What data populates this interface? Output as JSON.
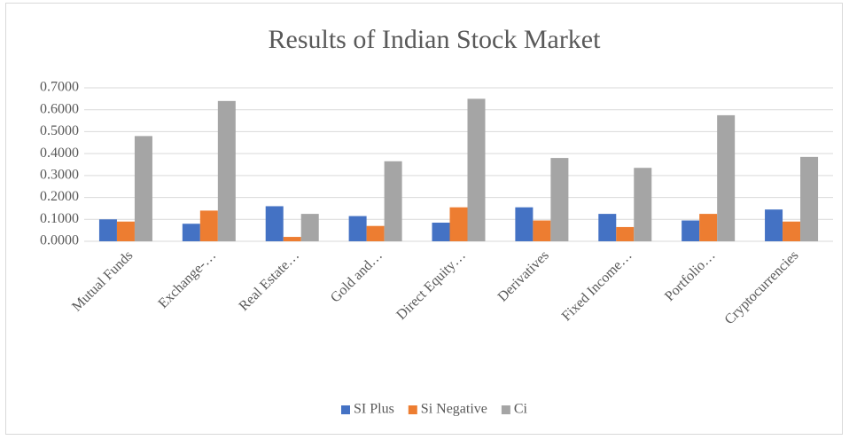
{
  "chart_data": {
    "type": "bar",
    "title": "Results of Indian Stock Market",
    "categories": [
      "Mutual Funds",
      "Exchange-…",
      "Real Estate…",
      "Gold and…",
      "Direct Equity…",
      "Derivatives",
      "Fixed Income…",
      "Portfolio…",
      "Cryptocurrencies"
    ],
    "series": [
      {
        "name": "SI Plus",
        "color": "#4472c4",
        "values": [
          0.1,
          0.08,
          0.16,
          0.115,
          0.085,
          0.155,
          0.125,
          0.095,
          0.145
        ]
      },
      {
        "name": "Si Negative",
        "color": "#ed7d31",
        "values": [
          0.09,
          0.14,
          0.02,
          0.07,
          0.155,
          0.095,
          0.065,
          0.125,
          0.09
        ]
      },
      {
        "name": "Ci",
        "color": "#a5a5a5",
        "values": [
          0.48,
          0.64,
          0.125,
          0.365,
          0.65,
          0.38,
          0.335,
          0.575,
          0.385
        ]
      }
    ],
    "ylim": [
      0,
      0.7
    ],
    "yticks": [
      {
        "value": 0,
        "label": "0.0000"
      },
      {
        "value": 0.1,
        "label": "0.1000"
      },
      {
        "value": 0.2,
        "label": "0.2000"
      },
      {
        "value": 0.3,
        "label": "0.3000"
      },
      {
        "value": 0.4,
        "label": "0.4000"
      },
      {
        "value": 0.5,
        "label": "0.5000"
      },
      {
        "value": 0.6,
        "label": "0.6000"
      },
      {
        "value": 0.7,
        "label": "0.7000"
      }
    ],
    "grid": true,
    "legend": "bottom"
  }
}
